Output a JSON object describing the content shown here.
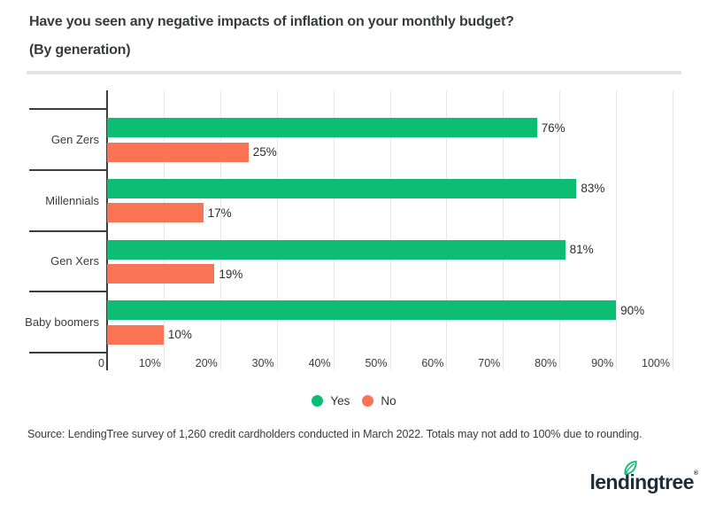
{
  "chart_data": {
    "type": "bar",
    "orientation": "horizontal",
    "title": "Have you seen any negative impacts of inflation on your monthly budget?",
    "subtitle": "(By generation)",
    "categories": [
      "Gen Zers",
      "Millennials",
      "Gen Xers",
      "Baby boomers"
    ],
    "series": [
      {
        "name": "Yes",
        "color": "#0dbd74",
        "values": [
          76,
          83,
          81,
          90
        ]
      },
      {
        "name": "No",
        "color": "#fb7355",
        "values": [
          25,
          17,
          19,
          10
        ]
      }
    ],
    "value_suffix": "%",
    "xlim": [
      0,
      100
    ],
    "x_ticks": [
      "0",
      "10%",
      "20%",
      "30%",
      "40%",
      "50%",
      "60%",
      "70%",
      "80%",
      "90%",
      "100%"
    ],
    "grid": true,
    "legend_position": "bottom"
  },
  "footer": {
    "source": "Source: LendingTree survey of 1,260 credit cardholders conducted in March 2022. Totals may not add to 100% due to rounding.",
    "logo_text": "lendingtree",
    "logo_mark": "®"
  },
  "colors": {
    "yes": "#0dbd74",
    "no": "#fb7355",
    "axis": "#3c3c3c",
    "grid": "#e6e6e6",
    "text": "#383a3e",
    "logo_navy": "#1e2d3c",
    "leaf_green": "#0ebd75"
  }
}
